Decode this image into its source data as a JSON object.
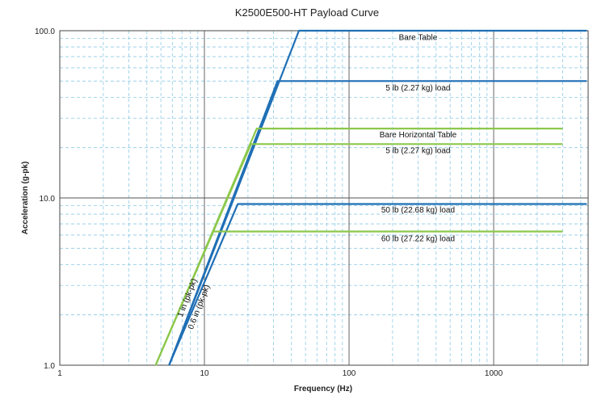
{
  "chart_data": {
    "type": "line",
    "title": "K2500E500-HT Payload Curve",
    "xlabel": "Frequency (Hz)",
    "ylabel": "Acceleration (g-pk)",
    "xscale": "log",
    "yscale": "log",
    "xlim": [
      1,
      4500
    ],
    "ylim": [
      1,
      100
    ],
    "x_tick_labels": [
      "1",
      "10",
      "100",
      "1000"
    ],
    "x_tick_values": [
      1,
      10,
      100,
      1000
    ],
    "y_tick_labels": [
      "1.0",
      "10.0",
      "100.0"
    ],
    "y_tick_values": [
      1,
      10,
      100
    ],
    "grid": true,
    "colors": {
      "blue": "#1f6fb5",
      "green": "#8cc84b",
      "grid_minor": "#8ecae6",
      "grid_major": "#555555"
    },
    "series": [
      {
        "name": "Bare Table",
        "color": "blue",
        "x": [
          5.7,
          45,
          4400
        ],
        "y": [
          1.0,
          100,
          100
        ]
      },
      {
        "name": "5 lb (2.27 kg) load",
        "color": "blue",
        "x": [
          5.7,
          32,
          4400
        ],
        "y": [
          1.0,
          50,
          50
        ]
      },
      {
        "name": "50 lb (22.68 kg) load",
        "color": "blue",
        "x": [
          5.7,
          17,
          4400
        ],
        "y": [
          1.0,
          9.2,
          9.2
        ]
      },
      {
        "name": "Bare Horizontal Table",
        "color": "green",
        "x": [
          4.6,
          23,
          3000
        ],
        "y": [
          1.0,
          26,
          26
        ]
      },
      {
        "name": "5 lb (2.27 kg) load",
        "color": "green",
        "x": [
          4.6,
          21,
          3000
        ],
        "y": [
          1.0,
          21,
          21
        ]
      },
      {
        "name": "60 lb (27.22 kg) load",
        "color": "green",
        "x": [
          4.6,
          11.5,
          3000
        ],
        "y": [
          1.0,
          6.3,
          6.3
        ]
      }
    ],
    "annotations": [
      {
        "text": "Bare Table",
        "x": 300,
        "y": 88
      },
      {
        "text": "5 lb (2.27 kg) load",
        "x": 300,
        "y": 44
      },
      {
        "text": "Bare Horizontal Table",
        "x": 300,
        "y": 23
      },
      {
        "text": "5 lb (2.27 kg) load",
        "x": 300,
        "y": 18.5
      },
      {
        "text": "50 lb (22.68 kg) load",
        "x": 300,
        "y": 8.2
      },
      {
        "text": "60 lb (27.22 kg) load",
        "x": 300,
        "y": 5.5
      }
    ],
    "rotated_annotations": [
      {
        "text": "1 in (pk-pk)",
        "x": 7.9,
        "y": 2.5
      },
      {
        "text": "0.6 in (pk-pk)",
        "x": 9.5,
        "y": 2.2
      }
    ]
  }
}
